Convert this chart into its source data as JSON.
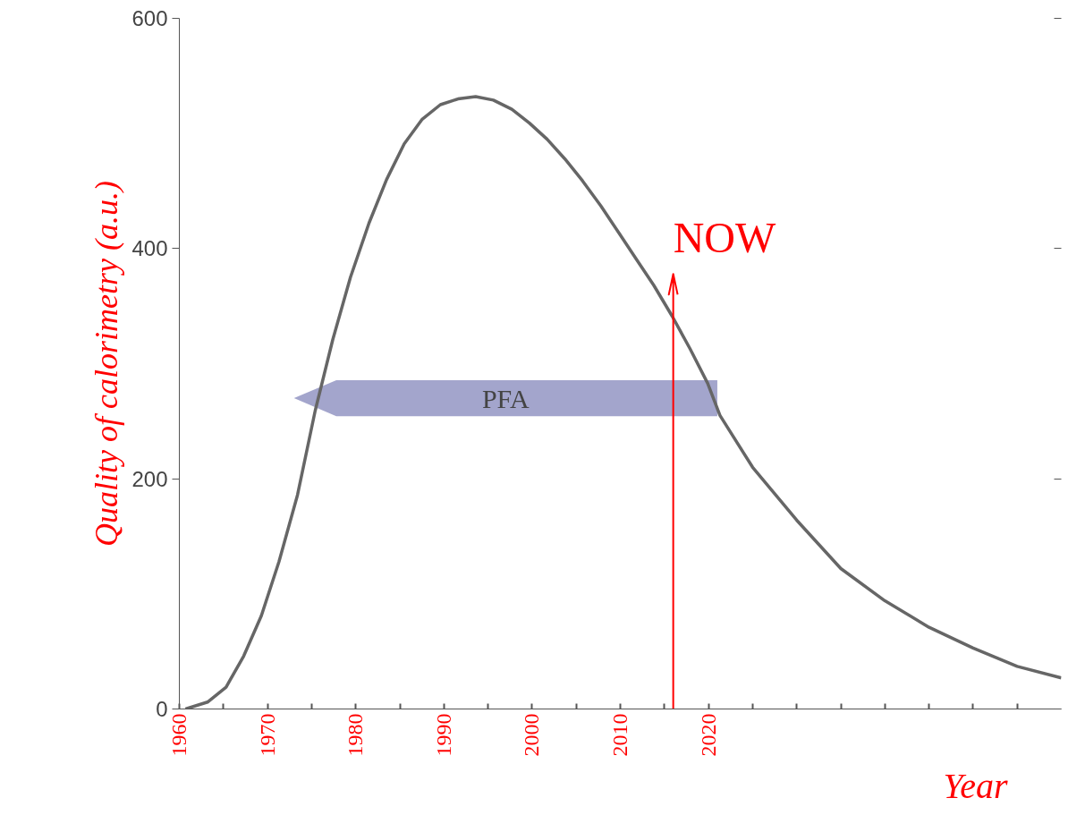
{
  "chart_data": {
    "type": "line",
    "xlabel": "Year",
    "ylabel": "Quality of calorimetry (a.u.)",
    "xlim": [
      1960,
      2060
    ],
    "ylim": [
      0,
      600
    ],
    "xticks": [
      1960,
      {
        "value": 1965,
        "label": null
      },
      1970,
      {
        "value": 1975,
        "label": null
      },
      1980,
      {
        "value": 1985,
        "label": null
      },
      1990,
      {
        "value": 1995,
        "label": null
      },
      2000,
      {
        "value": 2005,
        "label": null
      },
      2010,
      {
        "value": 2015,
        "label": null
      },
      2020,
      {
        "value": 2025,
        "label": null
      },
      {
        "value": 2030,
        "label": null
      },
      {
        "value": 2035,
        "label": null
      },
      {
        "value": 2040,
        "label": null
      },
      {
        "value": 2045,
        "label": null
      },
      {
        "value": 2050,
        "label": null
      },
      {
        "value": 2055,
        "label": null
      }
    ],
    "yticks": [
      0,
      200,
      400,
      600
    ],
    "x": [
      1960.7,
      1963.2,
      1965.3,
      1967.3,
      1969.3,
      1971.3,
      1973.4,
      1975.4,
      1977.4,
      1979.4,
      1981.5,
      1983.5,
      1985.5,
      1987.5,
      1989.6,
      1991.6,
      1993.6,
      1995.6,
      1997.7,
      1999.7,
      2001.7,
      2003.7,
      2005.7,
      2007.8,
      2009.8,
      2011.8,
      2013.8,
      2015.9,
      2017.9,
      2019.9,
      2021.3,
      2025,
      2030,
      2035,
      2040,
      2045,
      2050,
      2055,
      2060
    ],
    "series": [
      {
        "color": "#666666",
        "values": [
          0,
          6,
          19,
          46,
          81,
          128,
          186,
          259,
          321,
          375,
          422,
          460,
          491,
          512,
          525,
          530,
          532,
          529,
          521,
          509,
          495,
          478,
          459,
          437,
          414,
          391,
          368,
          341,
          313,
          283,
          255,
          210,
          164,
          122,
          94,
          71,
          53,
          37,
          27
        ]
      }
    ],
    "ref_lines": [
      {
        "axis": "x",
        "value": 2016,
        "label": "NOW",
        "color": "#ff0000"
      }
    ],
    "bands": [
      {
        "axis": "x",
        "from": 1973,
        "to": 2021,
        "label": "PFA",
        "color": "#a3a5cc"
      }
    ],
    "grid": false,
    "marker": "none",
    "line_style": "solid"
  }
}
